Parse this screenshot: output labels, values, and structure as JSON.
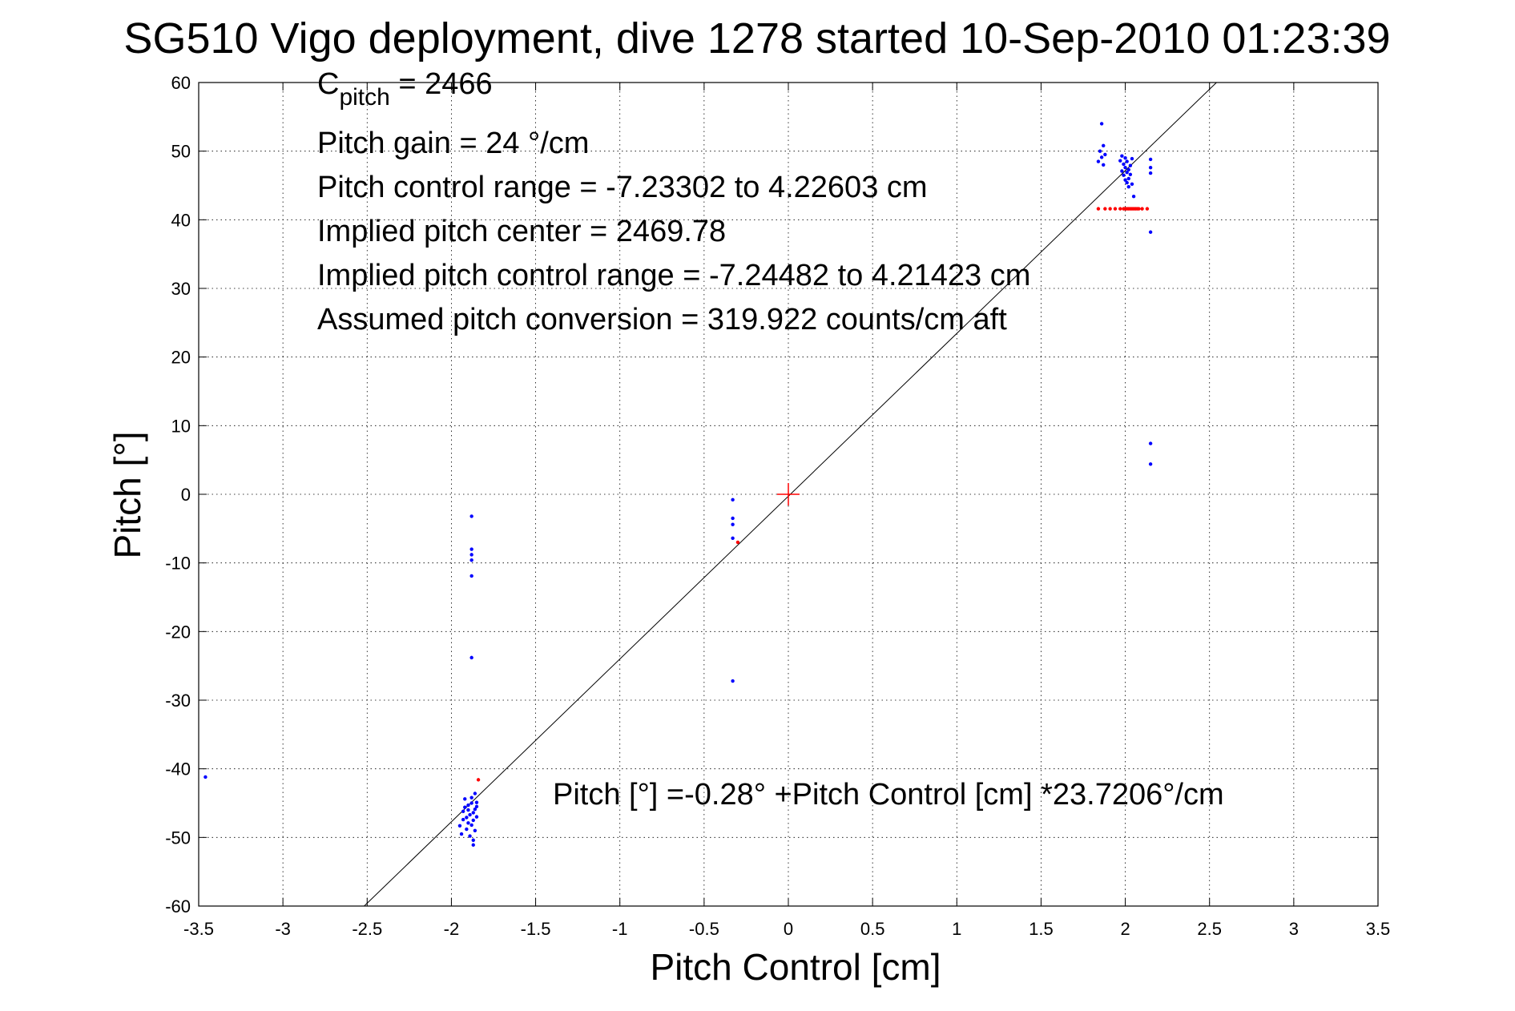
{
  "chart_data": {
    "type": "scatter",
    "title": "SG510 Vigo deployment, dive 1278 started 10-Sep-2010 01:23:39",
    "xlabel": "Pitch Control [cm]",
    "ylabel": "Pitch [°]",
    "xlim": [
      -3.5,
      3.5
    ],
    "ylim": [
      -60,
      60
    ],
    "grid": true,
    "xticks": [
      -3.5,
      -3,
      -2.5,
      -2,
      -1.5,
      -1,
      -0.5,
      0,
      0.5,
      1,
      1.5,
      2,
      2.5,
      3,
      3.5
    ],
    "xtick_labels": [
      "-3.5",
      "-3",
      "-2.5",
      "-2",
      "-1.5",
      "-1",
      "-0.5",
      "0",
      "0.5",
      "1",
      "1.5",
      "2",
      "2.5",
      "3",
      "3.5"
    ],
    "yticks": [
      -60,
      -50,
      -40,
      -30,
      -20,
      -10,
      0,
      10,
      20,
      30,
      40,
      50,
      60
    ],
    "ytick_labels": [
      "-60",
      "-50",
      "-40",
      "-30",
      "-20",
      "-10",
      "0",
      "10",
      "20",
      "30",
      "40",
      "50",
      "60"
    ],
    "colors": {
      "used": "#0000ff",
      "excluded": "#ff0000",
      "fit": "#000000",
      "center": "#ff0000"
    },
    "annotations": {
      "c_pitch_symbol": "C",
      "c_pitch_subscript": "pitch",
      "c_pitch_value": " = 2466",
      "lines": [
        "Pitch gain = 24 °/cm",
        "Pitch control range = -7.23302 to 4.22603 cm",
        "Implied pitch center = 2469.78",
        "Implied pitch control range = -7.24482 to 4.21423 cm",
        "Assumed pitch conversion = 319.922 counts/cm aft"
      ],
      "fit_equation": "Pitch [°] =-0.28° +Pitch Control [cm] *23.7206°/cm"
    },
    "fit": {
      "intercept": -0.28,
      "slope": 23.7206
    },
    "center_marker": [
      0,
      0
    ],
    "series": [
      {
        "marker": "dot",
        "color": "#0000ff",
        "points": [
          [
            -3.46,
            -41.2
          ],
          [
            -1.95,
            -48.3
          ],
          [
            -1.94,
            -49.5
          ],
          [
            -1.93,
            -47.4
          ],
          [
            -1.93,
            -46.2
          ],
          [
            -1.92,
            -45.6
          ],
          [
            -1.92,
            -44.4
          ],
          [
            -1.91,
            -47.1
          ],
          [
            -1.91,
            -48.8
          ],
          [
            -1.9,
            -46.0
          ],
          [
            -1.9,
            -47.9
          ],
          [
            -1.9,
            -45.3
          ],
          [
            -1.89,
            -49.8
          ],
          [
            -1.89,
            -46.7
          ],
          [
            -1.88,
            -45.0
          ],
          [
            -1.88,
            -48.2
          ],
          [
            -1.88,
            -44.2
          ],
          [
            -1.87,
            -47.5
          ],
          [
            -1.87,
            -50.4
          ],
          [
            -1.87,
            -51.1
          ],
          [
            -1.87,
            -46.4
          ],
          [
            -1.86,
            -43.6
          ],
          [
            -1.86,
            -45.9
          ],
          [
            -1.86,
            -49.0
          ],
          [
            -1.85,
            -44.9
          ],
          [
            -1.85,
            -47.0
          ],
          [
            -1.85,
            -45.5
          ],
          [
            -1.88,
            -3.2
          ],
          [
            -1.88,
            -8.0
          ],
          [
            -1.88,
            -8.8
          ],
          [
            -1.88,
            -9.6
          ],
          [
            -1.88,
            -11.9
          ],
          [
            -1.88,
            -23.8
          ],
          [
            -0.33,
            -0.8
          ],
          [
            -0.33,
            -3.5
          ],
          [
            -0.33,
            -4.4
          ],
          [
            -0.33,
            -6.4
          ],
          [
            -0.33,
            -27.2
          ],
          [
            1.84,
            48.5
          ],
          [
            1.85,
            50.0
          ],
          [
            1.86,
            49.1
          ],
          [
            1.86,
            54.0
          ],
          [
            1.87,
            50.8
          ],
          [
            1.87,
            48.0
          ],
          [
            1.88,
            49.5
          ],
          [
            1.97,
            48.6
          ],
          [
            1.98,
            49.3
          ],
          [
            1.98,
            47.1
          ],
          [
            1.99,
            46.5
          ],
          [
            1.99,
            48.1
          ],
          [
            2.0,
            45.8
          ],
          [
            2.0,
            47.6
          ],
          [
            2.0,
            49.0
          ],
          [
            2.01,
            46.9
          ],
          [
            2.01,
            45.4
          ],
          [
            2.01,
            48.5
          ],
          [
            2.02,
            47.3
          ],
          [
            2.02,
            46.0
          ],
          [
            2.02,
            44.8
          ],
          [
            2.03,
            47.9
          ],
          [
            2.03,
            46.6
          ],
          [
            2.04,
            45.2
          ],
          [
            2.04,
            48.9
          ],
          [
            2.05,
            43.4
          ],
          [
            2.15,
            48.8
          ],
          [
            2.15,
            47.6
          ],
          [
            2.15,
            46.8
          ],
          [
            2.15,
            38.2
          ],
          [
            2.15,
            7.4
          ],
          [
            2.15,
            4.4
          ]
        ]
      },
      {
        "marker": "dot",
        "color": "#ff0000",
        "points": [
          [
            -1.84,
            -41.6
          ],
          [
            -0.3,
            -7.0
          ],
          [
            1.84,
            41.6
          ],
          [
            1.88,
            41.6
          ],
          [
            1.91,
            41.6
          ],
          [
            1.94,
            41.6
          ],
          [
            1.97,
            41.6
          ],
          [
            1.99,
            41.6
          ],
          [
            2.0,
            41.6
          ],
          [
            2.01,
            41.6
          ],
          [
            2.02,
            41.6
          ],
          [
            2.03,
            41.6
          ],
          [
            2.04,
            41.6
          ],
          [
            2.05,
            41.6
          ],
          [
            2.06,
            41.6
          ],
          [
            2.07,
            41.6
          ],
          [
            2.08,
            41.6
          ],
          [
            2.1,
            41.6
          ],
          [
            2.13,
            41.6
          ]
        ]
      }
    ]
  }
}
